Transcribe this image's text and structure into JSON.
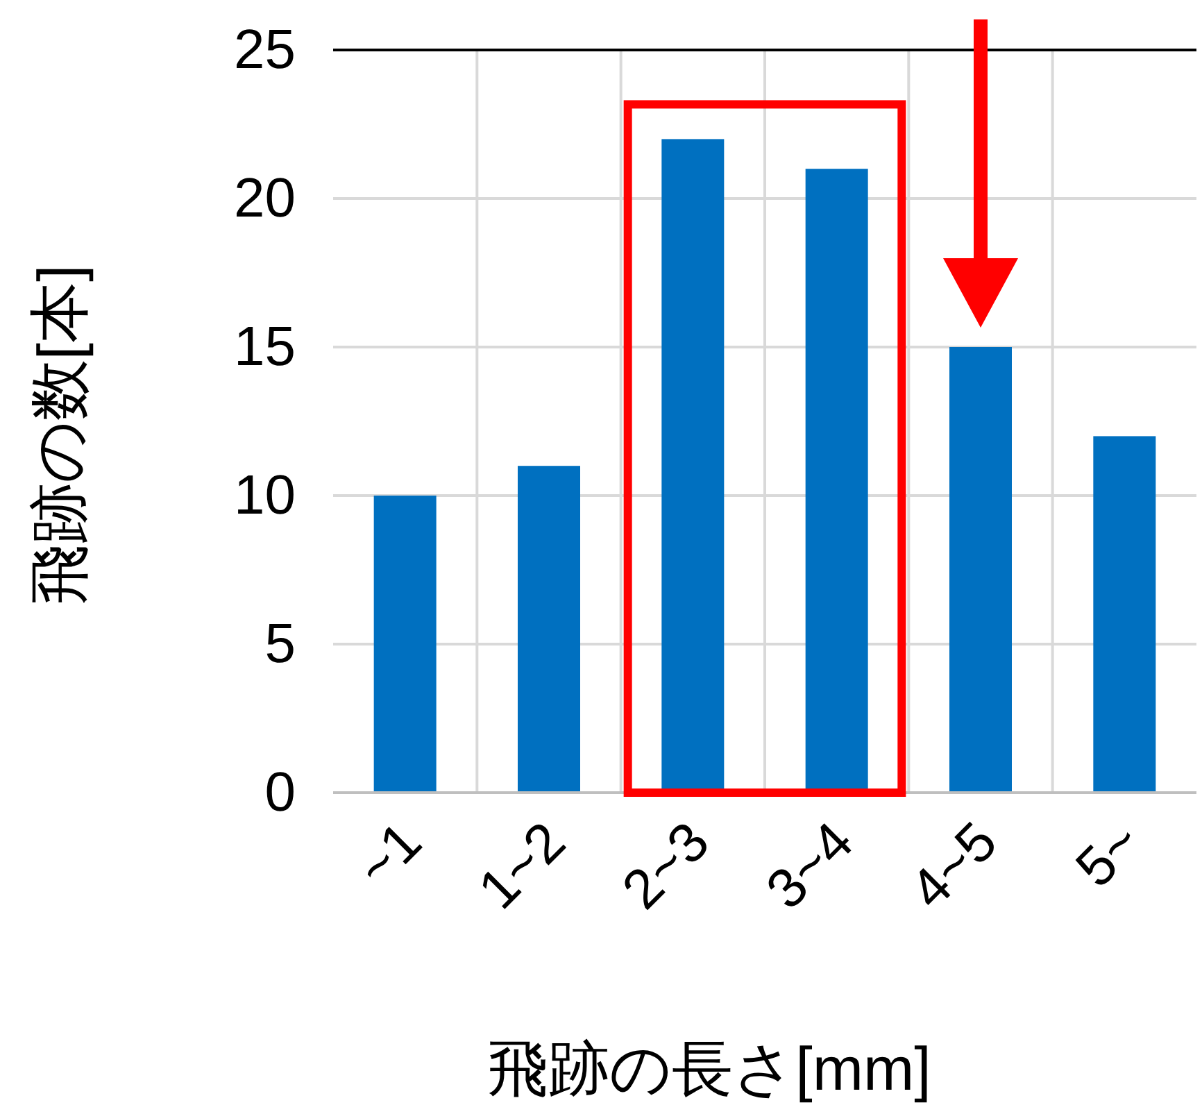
{
  "chart_data": {
    "type": "bar",
    "xlabel": "飛跡の長さ[mm]",
    "ylabel": "飛跡の数[本]",
    "categories": [
      "~1",
      "1~2",
      "2~3",
      "3~4",
      "4~5",
      "5~"
    ],
    "values": [
      10,
      11,
      22,
      21,
      15,
      12
    ],
    "color": "#0070c0",
    "ylim": [
      0,
      25
    ],
    "yticks": [
      0,
      5,
      10,
      15,
      20,
      25
    ],
    "grid": true
  }
}
